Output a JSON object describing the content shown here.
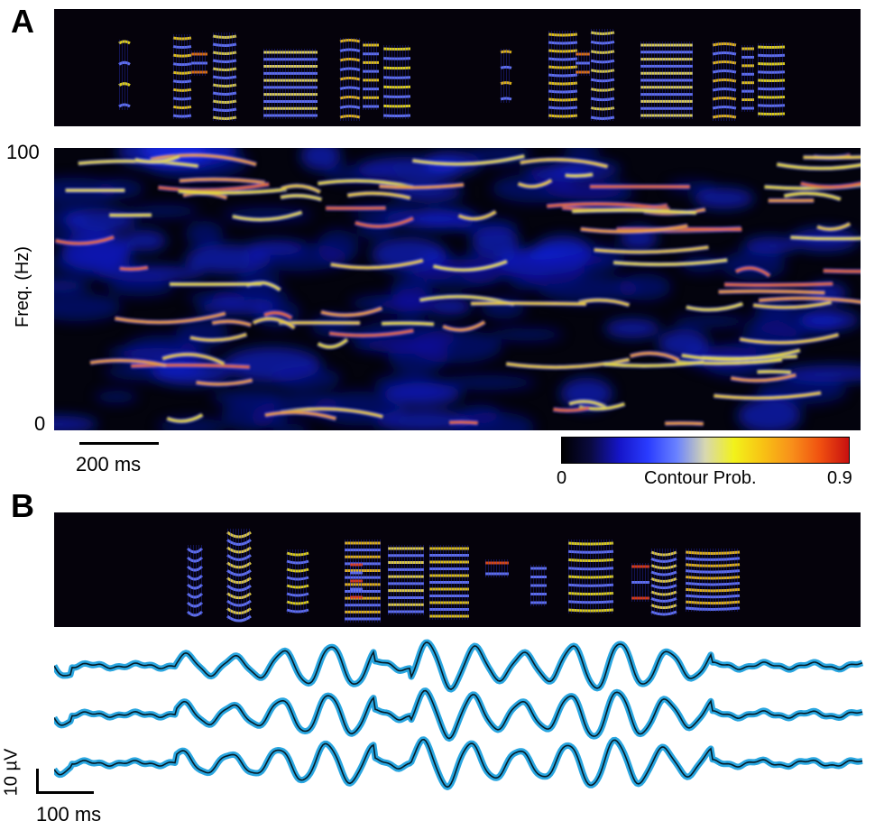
{
  "panel_a": {
    "letter": "A",
    "y_axis_label": "Freq. (Hz)",
    "y_tick_top": "100",
    "y_tick_bottom": "0",
    "time_scale_label": "200 ms"
  },
  "colorbar": {
    "label": "Contour Prob.",
    "min_label": "0",
    "max_label": "0.9",
    "min": 0,
    "max": 0.9,
    "colors": [
      "#000000",
      "#0a0a40",
      "#1515c8",
      "#2a3cff",
      "#6a82ff",
      "#d8d8b0",
      "#f2f21a",
      "#f8c214",
      "#f8901a",
      "#f05010",
      "#c81010"
    ]
  },
  "panel_b": {
    "letter": "B",
    "amplitude_scale_label": "10 µV",
    "time_scale_label": "100 ms",
    "trace_colors": {
      "band": "#29a6e0",
      "line": "#071a24"
    }
  }
}
